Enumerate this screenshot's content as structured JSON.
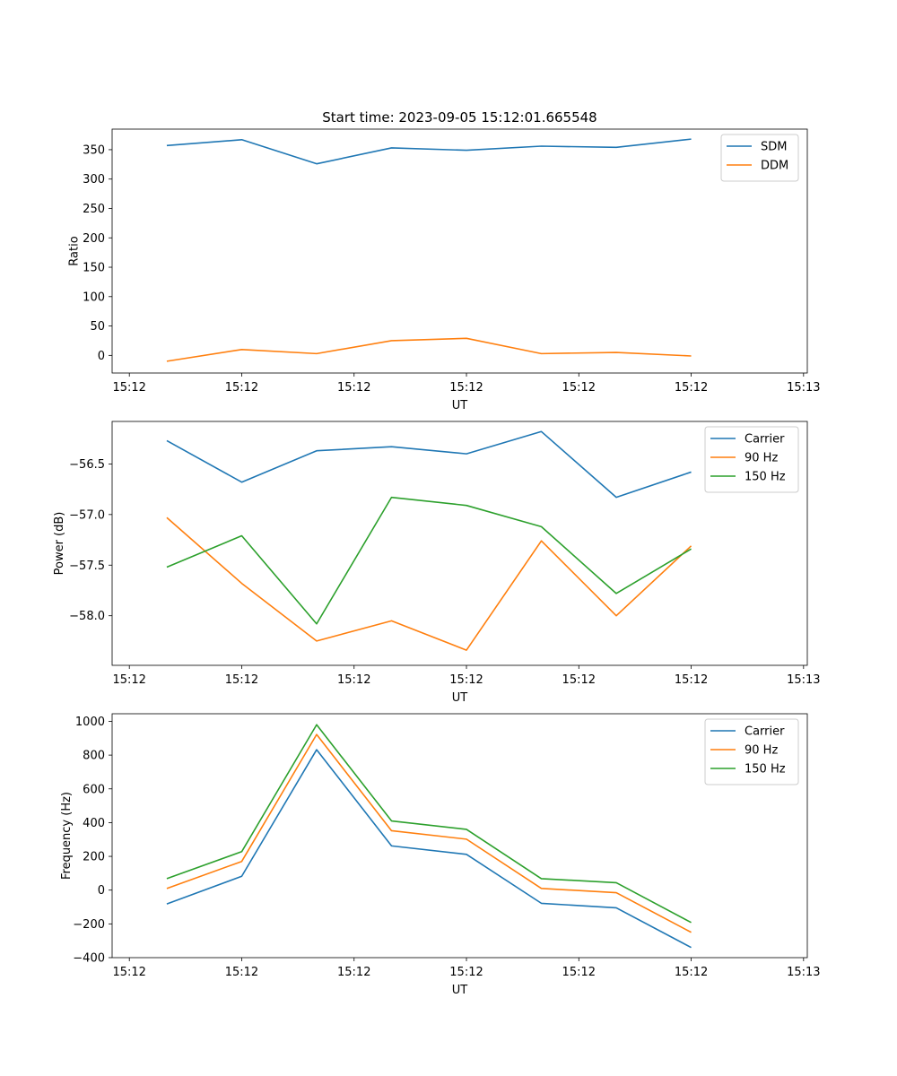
{
  "chart_data": [
    {
      "type": "line",
      "title": "Start time: 2023-09-05 15:12:01.665548",
      "xlabel": "UT",
      "ylabel": "Ratio",
      "x_ticks": [
        "15:12",
        "15:12",
        "15:12",
        "15:12",
        "15:12",
        "15:12",
        "15:13"
      ],
      "x_range": [
        -0.23,
        9.05
      ],
      "x": [
        0.5,
        1.5,
        2.5,
        3.5,
        4.5,
        5.5,
        6.5,
        7.5
      ],
      "ylim": [
        -30,
        385
      ],
      "yticks": [
        0,
        50,
        100,
        150,
        200,
        250,
        300,
        350
      ],
      "legend_position": "top-right",
      "series": [
        {
          "name": "SDM",
          "color": "#1f77b4",
          "values": [
            357,
            367,
            326,
            353,
            349,
            356,
            354,
            368
          ]
        },
        {
          "name": "DDM",
          "color": "#ff7f0e",
          "values": [
            -10,
            10,
            3,
            25,
            29,
            3,
            5,
            -1
          ]
        }
      ]
    },
    {
      "type": "line",
      "title": "",
      "xlabel": "UT",
      "ylabel": "Power (dB)",
      "x_ticks": [
        "15:12",
        "15:12",
        "15:12",
        "15:12",
        "15:12",
        "15:12",
        "15:13"
      ],
      "x_range": [
        -0.23,
        9.05
      ],
      "x": [
        0.5,
        1.5,
        2.5,
        3.5,
        4.5,
        5.5,
        6.5,
        7.5
      ],
      "ylim": [
        -58.49,
        -56.08
      ],
      "yticks": [
        -58.0,
        -57.5,
        -57.0,
        -56.5
      ],
      "ytick_labels": [
        "−58.0",
        "−57.5",
        "−57.0",
        "−56.5"
      ],
      "legend_position": "top-right",
      "series": [
        {
          "name": "Carrier",
          "color": "#1f77b4",
          "values": [
            -56.27,
            -56.68,
            -56.37,
            -56.33,
            -56.4,
            -56.18,
            -56.83,
            -56.58
          ]
        },
        {
          "name": "90 Hz",
          "color": "#ff7f0e",
          "values": [
            -57.03,
            -57.68,
            -58.25,
            -58.05,
            -58.34,
            -57.26,
            -58.0,
            -57.31
          ]
        },
        {
          "name": "150 Hz",
          "color": "#2ca02c",
          "values": [
            -57.52,
            -57.21,
            -58.08,
            -56.83,
            -56.91,
            -57.12,
            -57.78,
            -57.34
          ]
        }
      ]
    },
    {
      "type": "line",
      "title": "",
      "xlabel": "UT",
      "ylabel": "Frequency (Hz)",
      "x_ticks": [
        "15:12",
        "15:12",
        "15:12",
        "15:12",
        "15:12",
        "15:12",
        "15:13"
      ],
      "x_range": [
        -0.23,
        9.05
      ],
      "x": [
        0.5,
        1.5,
        2.5,
        3.5,
        4.5,
        5.5,
        6.5,
        7.5
      ],
      "ylim": [
        -400,
        1045
      ],
      "yticks": [
        -400,
        -200,
        0,
        200,
        400,
        600,
        800,
        1000
      ],
      "ytick_labels": [
        "−400",
        "−200",
        "0",
        "200",
        "400",
        "600",
        "800",
        "1000"
      ],
      "legend_position": "top-right",
      "series": [
        {
          "name": "Carrier",
          "color": "#1f77b4",
          "values": [
            -82,
            82,
            832,
            262,
            212,
            -78,
            -105,
            -340
          ]
        },
        {
          "name": "90 Hz",
          "color": "#ff7f0e",
          "values": [
            10,
            170,
            922,
            352,
            302,
            10,
            -15,
            -250
          ]
        },
        {
          "name": "150 Hz",
          "color": "#2ca02c",
          "values": [
            68,
            228,
            980,
            410,
            360,
            68,
            44,
            -192
          ]
        }
      ]
    }
  ]
}
